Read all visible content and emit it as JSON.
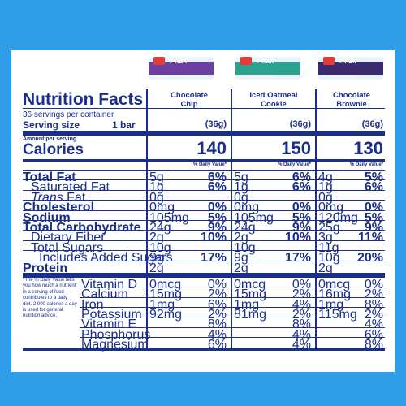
{
  "title": "Nutrition Facts",
  "servings_per_container": "36 servings per container",
  "serving_size_label": "Serving size",
  "serving_size_value": "1 bar",
  "amount_per_serving": "Amount per serving",
  "calories_label": "Calories",
  "daily_value_header": "% Daily Value*",
  "wrappers": [
    {
      "brand": "Z BAR",
      "flavor": "CHOCOLATE CHIP",
      "color": "#6b3fa0"
    },
    {
      "brand": "Z BAR",
      "flavor": "ICED OATMEAL COOKIE",
      "color": "#2aa28f"
    },
    {
      "brand": "Z BAR",
      "flavor": "CHOCOLATE BROWNIE",
      "color": "#3b2a6e"
    }
  ],
  "columns": [
    {
      "name_line1": "Chocolate",
      "name_line2": "Chip",
      "serving": "(36g)",
      "calories": "140",
      "dv_header": "% Daily Value*",
      "nutrients": [
        [
          "5g",
          "6%"
        ],
        [
          "1g",
          "6%"
        ],
        [
          "0g",
          ""
        ],
        [
          "0mg",
          "0%"
        ],
        [
          "105mg",
          "5%"
        ],
        [
          "24g",
          "9%"
        ],
        [
          "2g",
          "10%"
        ],
        [
          "10g",
          ""
        ],
        [
          "9g",
          "17%"
        ],
        [
          "2g",
          ""
        ]
      ],
      "vitamins": [
        [
          "0mcg",
          "0%"
        ],
        [
          "15mg",
          "2%"
        ],
        [
          "1mg",
          "6%"
        ],
        [
          "92mg",
          "2%"
        ],
        [
          "",
          "8%"
        ],
        [
          "",
          "4%"
        ],
        [
          "",
          "6%"
        ]
      ]
    },
    {
      "name_line1": "Iced Oatmeal",
      "name_line2": "Cookie",
      "serving": "(36g)",
      "calories": "150",
      "dv_header": "% Daily Value*",
      "nutrients": [
        [
          "5g",
          "6%"
        ],
        [
          "1g",
          "6%"
        ],
        [
          "0g",
          ""
        ],
        [
          "0mg",
          "0%"
        ],
        [
          "105mg",
          "5%"
        ],
        [
          "24g",
          "9%"
        ],
        [
          "2g",
          "10%"
        ],
        [
          "10g",
          ""
        ],
        [
          "9g",
          "17%"
        ],
        [
          "2g",
          ""
        ]
      ],
      "vitamins": [
        [
          "0mcg",
          "0%"
        ],
        [
          "15mg",
          "2%"
        ],
        [
          "1mg",
          "4%"
        ],
        [
          "81mg",
          "2%"
        ],
        [
          "",
          "8%"
        ],
        [
          "",
          "4%"
        ],
        [
          "",
          "4%"
        ]
      ]
    },
    {
      "name_line1": "Chocolate",
      "name_line2": "Brownie",
      "serving": "(36g)",
      "calories": "130",
      "dv_header": "% Daily Value*",
      "nutrients": [
        [
          "4g",
          "5%"
        ],
        [
          "1g",
          "6%"
        ],
        [
          "0g",
          ""
        ],
        [
          "0mg",
          "0%"
        ],
        [
          "120mg",
          "5%"
        ],
        [
          "25g",
          "9%"
        ],
        [
          "3g",
          "11%"
        ],
        [
          "11g",
          ""
        ],
        [
          "10g",
          "20%"
        ],
        [
          "2g",
          ""
        ]
      ],
      "vitamins": [
        [
          "0mcg",
          "0%"
        ],
        [
          "16mg",
          "2%"
        ],
        [
          "1mg",
          "8%"
        ],
        [
          "115mg",
          "2%"
        ],
        [
          "",
          "4%"
        ],
        [
          "",
          "6%"
        ],
        [
          "",
          "8%"
        ]
      ]
    }
  ],
  "nutrient_labels": [
    {
      "label": "Total Fat",
      "bold": true,
      "indent": 0
    },
    {
      "label": "Saturated Fat",
      "bold": false,
      "indent": 1
    },
    {
      "label": "Trans Fat",
      "bold": false,
      "indent": 1,
      "italic_word": "Trans"
    },
    {
      "label": "Cholesterol",
      "bold": true,
      "indent": 0
    },
    {
      "label": "Sodium",
      "bold": true,
      "indent": 0
    },
    {
      "label": "Total Carbohydrate",
      "bold": true,
      "indent": 0
    },
    {
      "label": "Dietary Fiber",
      "bold": false,
      "indent": 1
    },
    {
      "label": "Total Sugars",
      "bold": false,
      "indent": 1
    },
    {
      "label": "Includes Added Sugars",
      "bold": false,
      "indent": 2
    },
    {
      "label": "Protein",
      "bold": true,
      "indent": 0
    }
  ],
  "vitamin_labels": [
    "Vitamin D",
    "Calcium",
    "Iron",
    "Potassium",
    "Vitamin E",
    "Phosphorus",
    "Magnesium"
  ],
  "footnote": "*The % Daily Value tells you how much a nutrient in a serving of food contributes to a daily diet. 2,000 calories a day is used for general nutrition advice."
}
